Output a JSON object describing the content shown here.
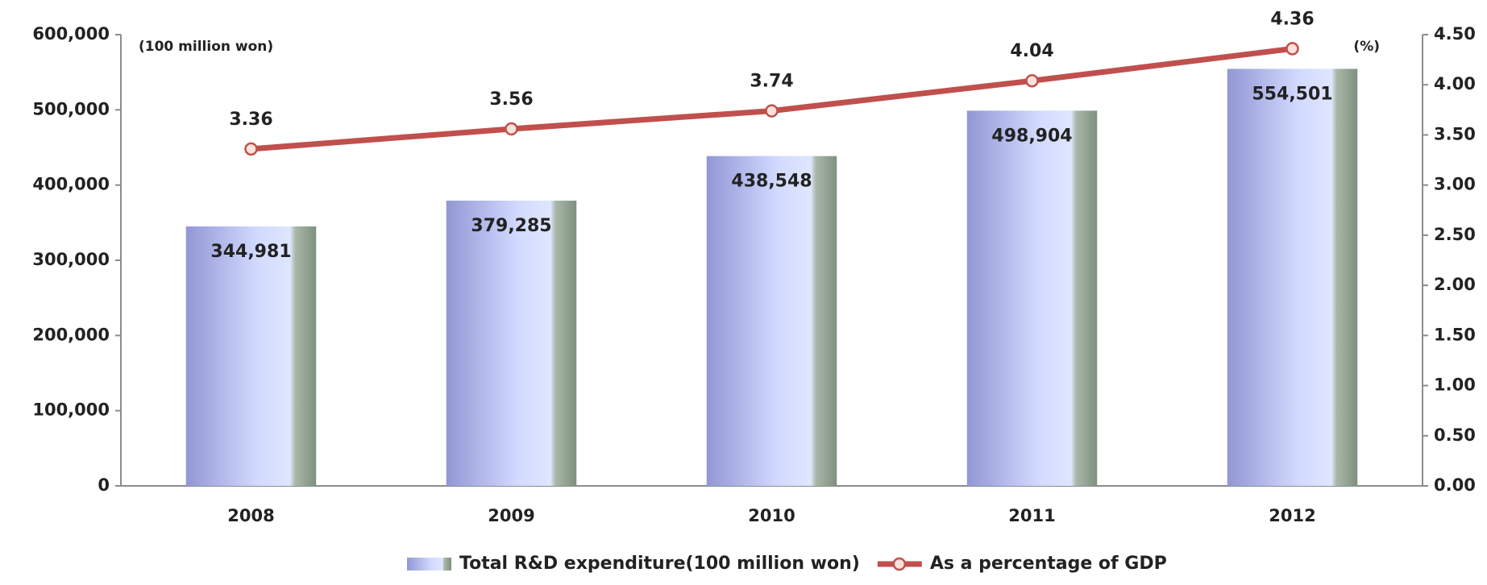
{
  "chart_data": {
    "type": "bar",
    "categories": [
      "2008",
      "2009",
      "2010",
      "2011",
      "2012"
    ],
    "series": [
      {
        "name": "Total R&D expenditure(100 million won)",
        "type": "bar",
        "color": "#9297d4",
        "values": [
          344981,
          379285,
          438548,
          498904,
          554501
        ],
        "value_labels": [
          "344,981",
          "379,285",
          "438,548",
          "498,904",
          "554,501"
        ]
      },
      {
        "name": "As a percentage of GDP",
        "type": "line",
        "axis": "y2",
        "color": "#c0504d",
        "values": [
          3.36,
          3.56,
          3.74,
          4.04,
          4.36
        ]
      }
    ],
    "ylim": [
      0,
      600000
    ],
    "yticks": [
      0,
      {
        "value": 100000,
        "label": "100,000"
      },
      {
        "value": 200000,
        "label": "200,000"
      },
      {
        "value": 300000,
        "label": "300,000"
      },
      {
        "value": 400000,
        "label": "400,000"
      },
      {
        "value": 500000,
        "label": "500,000"
      },
      {
        "value": 600000,
        "label": "600,000"
      }
    ],
    "y2lim": [
      0,
      4.5
    ],
    "y2ticks": [
      {
        "value": 0,
        "label": "0.00"
      },
      {
        "value": 0.5,
        "label": "0.50"
      },
      {
        "value": 1,
        "label": "1.00"
      },
      {
        "value": 1.5,
        "label": "1.50"
      },
      {
        "value": 2,
        "label": "2.00"
      },
      {
        "value": 2.5,
        "label": "2.50"
      },
      {
        "value": 3,
        "label": "3.00"
      },
      {
        "value": 3.5,
        "label": "3.50"
      },
      {
        "value": 4,
        "label": "4.00"
      },
      {
        "value": 4.5,
        "label": "4.50"
      }
    ],
    "annotations": [
      "(100 million won)",
      "(%)"
    ],
    "grid": false,
    "legend": "bottom"
  }
}
